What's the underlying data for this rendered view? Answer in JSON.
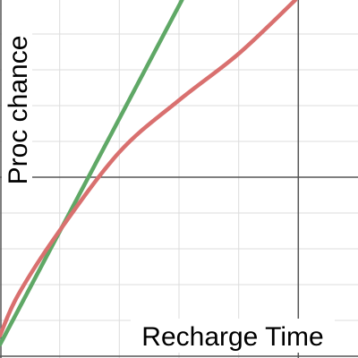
{
  "chart_data": {
    "type": "line",
    "x_label": "Recharge Time",
    "y_label": "Proc chance",
    "xlim": [
      0,
      6
    ],
    "ylim": [
      0,
      10
    ],
    "series": [
      {
        "color": "#5fa866",
        "x": [
          0,
          3.05
        ],
        "values": [
          0.375,
          10
        ]
      },
      {
        "color": "#d9706f",
        "x": [
          0,
          0.3,
          0.975,
          2,
          3,
          4,
          4.95
        ],
        "values": [
          0.625,
          1.75,
          3.5,
          5.75,
          7.2,
          8.5,
          10
        ]
      }
    ]
  }
}
